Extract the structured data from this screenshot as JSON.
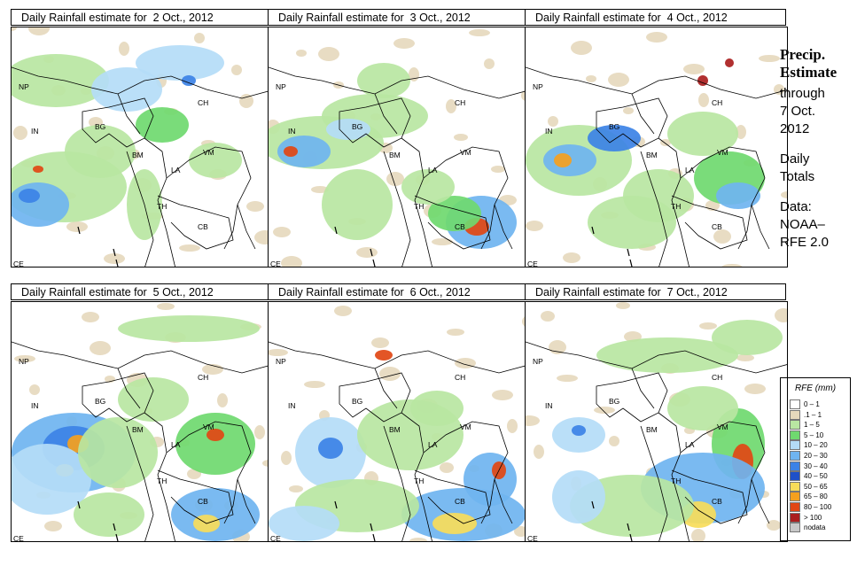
{
  "panels": [
    {
      "title": "Daily Rainfall estimate for  2 Oct., 2012"
    },
    {
      "title": "Daily Rainfall estimate for  3 Oct., 2012"
    },
    {
      "title": "Daily Rainfall estimate for  4 Oct., 2012"
    },
    {
      "title": "Daily Rainfall estimate for  5 Oct., 2012"
    },
    {
      "title": "Daily Rainfall estimate for  6 Oct., 2012"
    },
    {
      "title": "Daily Rainfall estimate for  7 Oct., 2012"
    }
  ],
  "country_labels": {
    "np": "NP",
    "in": "IN",
    "bg": "BG",
    "bm": "BM",
    "ch": "CH",
    "vm": "VM",
    "la": "LA",
    "th": "TH",
    "cb": "CB",
    "ce": "CE"
  },
  "side": {
    "heading_1": "Precip.",
    "heading_2": "Estimate",
    "line_through": "through",
    "line_date": "7 Oct.",
    "line_year": "2012",
    "line_daily": "Daily",
    "line_totals": "Totals",
    "line_data": "Data:",
    "line_noaa": "NOAA–",
    "line_rfe": "RFE 2.0"
  },
  "legend": {
    "title": "RFE (mm)",
    "items": [
      {
        "label": "0 – 1",
        "color": "#ffffff"
      },
      {
        "label": ".1 – 1",
        "color": "#e6d8bc"
      },
      {
        "label": "1 – 5",
        "color": "#b9e6a2"
      },
      {
        "label": "5 – 10",
        "color": "#6fd96f"
      },
      {
        "label": "10 – 20",
        "color": "#b4dcf7"
      },
      {
        "label": "20 – 30",
        "color": "#6fb4f0"
      },
      {
        "label": "30 – 40",
        "color": "#3c82e6"
      },
      {
        "label": "40 – 50",
        "color": "#1f50c8"
      },
      {
        "label": "50 – 65",
        "color": "#f7dc5a"
      },
      {
        "label": "65 – 80",
        "color": "#f5a01e"
      },
      {
        "label": "80 – 100",
        "color": "#e14614"
      },
      {
        "label": "> 100",
        "color": "#aa1e1e"
      },
      {
        "label": "nodata",
        "color": "#c8c8c8"
      }
    ]
  }
}
